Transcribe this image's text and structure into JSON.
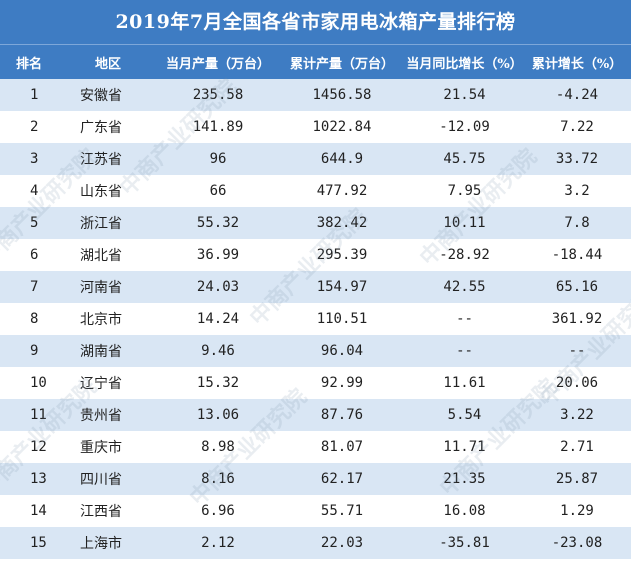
{
  "title": "2019年7月全国各省市家用电冰箱产量排行榜",
  "headers": [
    "排名",
    "地区",
    "当月产量（万台）",
    "累计产量（万台）",
    "当月同比增长（%）",
    "累计增长（%）"
  ],
  "rows": [
    [
      "1",
      "安徽省",
      "235.58",
      "1456.58",
      "21.54",
      "-4.24"
    ],
    [
      "2",
      "广东省",
      "141.89",
      "1022.84",
      "-12.09",
      "7.22"
    ],
    [
      "3",
      "江苏省",
      "96",
      "644.9",
      "45.75",
      "33.72"
    ],
    [
      "4",
      "山东省",
      "66",
      "477.92",
      "7.95",
      "3.2"
    ],
    [
      "5",
      "浙江省",
      "55.32",
      "382.42",
      "10.11",
      "7.8"
    ],
    [
      "6",
      "湖北省",
      "36.99",
      "295.39",
      "-28.92",
      "-18.44"
    ],
    [
      "7",
      "河南省",
      "24.03",
      "154.97",
      "42.55",
      "65.16"
    ],
    [
      "8",
      "北京市",
      "14.24",
      "110.51",
      "--",
      "361.92"
    ],
    [
      "9",
      "湖南省",
      "9.46",
      "96.04",
      "--",
      "--"
    ],
    [
      "10",
      "辽宁省",
      "15.32",
      "92.99",
      "11.61",
      "20.06"
    ],
    [
      "11",
      "贵州省",
      "13.06",
      "87.76",
      "5.54",
      "3.22"
    ],
    [
      "12",
      "重庆市",
      "8.98",
      "81.07",
      "11.71",
      "2.71"
    ],
    [
      "13",
      "四川省",
      "8.16",
      "62.17",
      "21.35",
      "25.87"
    ],
    [
      "14",
      "江西省",
      "6.96",
      "55.71",
      "16.08",
      "1.29"
    ],
    [
      "15",
      "上海市",
      "2.12",
      "22.03",
      "-35.81",
      "-23.08"
    ]
  ],
  "watermark": "中商产业研究院",
  "colors": {
    "header_bg": "#3e7cc3",
    "stripe": "#d9e6f4",
    "text": "#222222"
  }
}
